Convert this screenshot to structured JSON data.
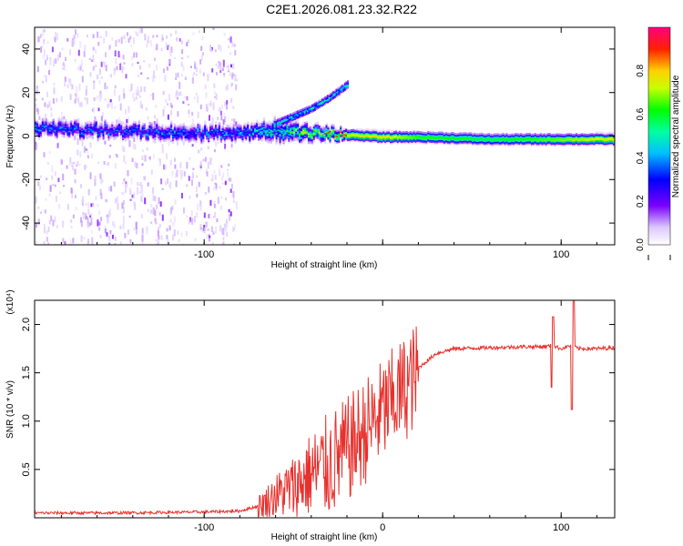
{
  "title": "C2E1.2026.081.23.32.R22",
  "colors": {
    "trace": "#e8302c",
    "frame": "#000000"
  },
  "chart_data": [
    {
      "type": "heatmap",
      "xlabel": "Height of straight line (km)",
      "ylabel": "Frequency (Hz)",
      "xlim": [
        -195,
        130
      ],
      "ylim": [
        -50,
        50
      ],
      "x_ticks": [
        -100,
        0,
        100
      ],
      "x_tick_labels": [
        "-100",
        "",
        "100"
      ],
      "y_ticks": [
        -40,
        -20,
        0,
        20,
        40
      ],
      "y_tick_labels": [
        "-40",
        "-20",
        "0",
        "20",
        "40"
      ],
      "colorbar": {
        "label": "Normalized spectral amplitude",
        "range": [
          0,
          1
        ],
        "ticks": [
          0.0,
          0.2,
          0.4,
          0.6,
          0.8
        ],
        "tick_labels": [
          "0.0",
          "0.2",
          "0.4",
          "0.6",
          "0.8"
        ]
      },
      "band": {
        "description_points_x": [
          -195,
          -150,
          -100,
          -80,
          -60,
          -40,
          -20,
          0,
          20,
          60,
          100,
          130
        ],
        "center_hz": [
          4,
          3,
          2,
          2,
          3,
          2,
          1,
          0,
          0,
          -1,
          -1,
          -1
        ],
        "half_width_hz": [
          3,
          3,
          3,
          3,
          4,
          3,
          2,
          2,
          2,
          2,
          2,
          2
        ],
        "amplitude": [
          0.35,
          0.3,
          0.35,
          0.35,
          0.45,
          0.6,
          0.75,
          0.8,
          0.65,
          0.6,
          0.7,
          0.8
        ]
      },
      "branch": {
        "x": [
          -60,
          -40,
          -30,
          -20
        ],
        "hz": [
          6,
          13,
          18,
          24
        ]
      }
    },
    {
      "type": "line",
      "xlabel": "Height of straight line (km)",
      "ylabel": "SNR (10 * v/v)",
      "y_scale_label": "(x10⁴)",
      "xlim": [
        -195,
        130
      ],
      "ylim": [
        0,
        2.25
      ],
      "x_ticks": [
        -100,
        0,
        100
      ],
      "x_tick_labels": [
        "-100",
        "0",
        "100"
      ],
      "y_ticks": [
        0.5,
        1.0,
        1.5,
        2.0
      ],
      "y_tick_labels": [
        "0.5",
        "1.0",
        "1.5",
        "2.0"
      ],
      "series": [
        {
          "name": "SNR",
          "x": [
            -195,
            -150,
            -100,
            -80,
            -70,
            -60,
            -50,
            -40,
            -30,
            -20,
            -10,
            0,
            10,
            20,
            30,
            40,
            60,
            80,
            90,
            95,
            100,
            105,
            110,
            120,
            130
          ],
          "y": [
            0.05,
            0.05,
            0.06,
            0.07,
            0.12,
            0.25,
            0.35,
            0.5,
            0.6,
            0.75,
            0.95,
            1.15,
            1.35,
            1.55,
            1.7,
            1.75,
            1.76,
            1.77,
            1.77,
            1.78,
            1.75,
            1.78,
            1.75,
            1.75,
            1.76
          ]
        }
      ],
      "spikes": [
        {
          "x": 94.5,
          "y": 1.35
        },
        {
          "x": 95.5,
          "y": 2.08
        },
        {
          "x": 106,
          "y": 1.12
        },
        {
          "x": 107,
          "y": 2.25
        }
      ]
    }
  ]
}
